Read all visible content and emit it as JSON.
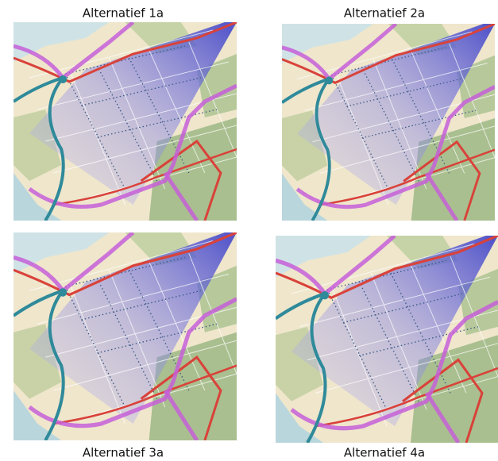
{
  "panels": [
    {
      "label": "Alternatief 1a"
    },
    {
      "label": "Alternatief 2a"
    },
    {
      "label": "Alternatief 3a"
    },
    {
      "label": "Alternatief 4a"
    }
  ]
}
